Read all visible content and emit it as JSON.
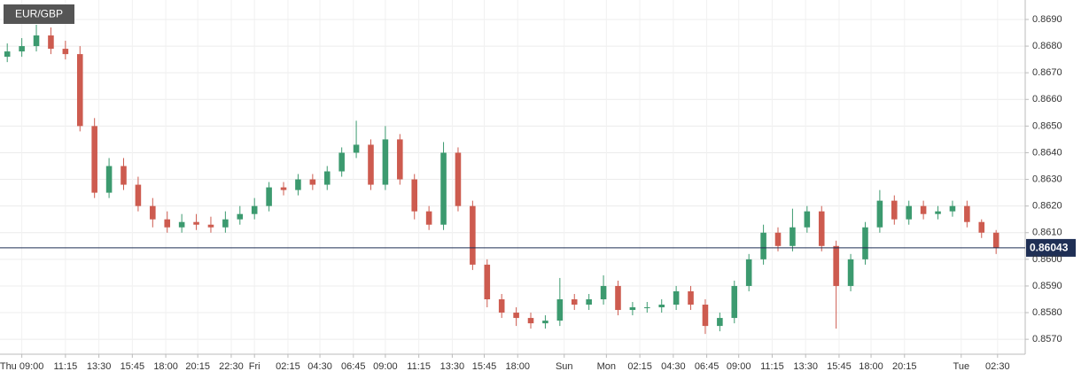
{
  "chart_data": {
    "type": "candlestick",
    "title": "EUR/GBP",
    "x": [
      0.5,
      1.5,
      2.5,
      3.5,
      4.5,
      5.5,
      6.5,
      7.5,
      8.5,
      9.5,
      10.5,
      11.5,
      12.5,
      13.5,
      14.5,
      15.5,
      16.5,
      17.5,
      18.5,
      19.5,
      20.5,
      21.5,
      22.5,
      23.5,
      24.5,
      25.5,
      26.5,
      27.5,
      28.5,
      29.5,
      30.5,
      31.5,
      32.5,
      33.5,
      34.5,
      35.5,
      36.5,
      37.5,
      38.5,
      39.5,
      40.5,
      41.5,
      42.5,
      43.5,
      44.5,
      45.5,
      46.5,
      47.5,
      48.5,
      49.5,
      50.5,
      51.5,
      52.5,
      53.5,
      54.5,
      55.5,
      56.5,
      57.5,
      58.5,
      59.5,
      60.5,
      61.5,
      62.5,
      63.5,
      64.5,
      65.5,
      66.5,
      67.5,
      68.5
    ],
    "open": [
      0.8676,
      0.8678,
      0.868,
      0.8684,
      0.8679,
      0.8677,
      0.865,
      0.8625,
      0.8635,
      0.8628,
      0.862,
      0.8615,
      0.8612,
      0.8614,
      0.8613,
      0.8612,
      0.8615,
      0.8617,
      0.862,
      0.8627,
      0.8626,
      0.863,
      0.8628,
      0.8633,
      0.864,
      0.8643,
      0.8628,
      0.8645,
      0.863,
      0.8618,
      0.8613,
      0.864,
      0.862,
      0.8598,
      0.8585,
      0.858,
      0.8578,
      0.8576,
      0.8577,
      0.8585,
      0.8583,
      0.8585,
      0.859,
      0.8581,
      0.8582,
      0.8582,
      0.8583,
      0.8588,
      0.8583,
      0.8575,
      0.8578,
      0.859,
      0.86,
      0.861,
      0.8605,
      0.8612,
      0.8618,
      0.8605,
      0.859,
      0.86,
      0.8612,
      0.8622,
      0.8615,
      0.862,
      0.8617,
      0.8618,
      0.862,
      0.8614,
      0.861
    ],
    "high": [
      0.8681,
      0.8683,
      0.8688,
      0.8687,
      0.8682,
      0.868,
      0.8653,
      0.8638,
      0.8638,
      0.8631,
      0.8623,
      0.8618,
      0.8617,
      0.8617,
      0.8616,
      0.8618,
      0.862,
      0.8623,
      0.8629,
      0.8629,
      0.8632,
      0.8632,
      0.8635,
      0.8642,
      0.8652,
      0.8645,
      0.865,
      0.8647,
      0.8632,
      0.862,
      0.8644,
      0.8642,
      0.8622,
      0.86,
      0.8587,
      0.8582,
      0.858,
      0.8579,
      0.8593,
      0.8587,
      0.8587,
      0.8594,
      0.8592,
      0.8584,
      0.8584,
      0.8585,
      0.859,
      0.859,
      0.8585,
      0.858,
      0.8592,
      0.8602,
      0.8613,
      0.8612,
      0.8619,
      0.862,
      0.862,
      0.8607,
      0.8602,
      0.8614,
      0.8626,
      0.8624,
      0.8622,
      0.8622,
      0.862,
      0.8622,
      0.8622,
      0.8615,
      0.8611
    ],
    "low": [
      0.8674,
      0.8676,
      0.8678,
      0.8677,
      0.8675,
      0.8648,
      0.8623,
      0.8623,
      0.8626,
      0.8618,
      0.8612,
      0.861,
      0.861,
      0.8611,
      0.861,
      0.861,
      0.8613,
      0.8615,
      0.8618,
      0.8624,
      0.8624,
      0.8626,
      0.8626,
      0.8631,
      0.8638,
      0.8626,
      0.8626,
      0.8628,
      0.8615,
      0.8611,
      0.8611,
      0.8618,
      0.8596,
      0.8582,
      0.8578,
      0.8575,
      0.8574,
      0.8574,
      0.8575,
      0.8581,
      0.8581,
      0.8583,
      0.8579,
      0.8579,
      0.858,
      0.858,
      0.8581,
      0.8581,
      0.8572,
      0.8573,
      0.8576,
      0.8588,
      0.8598,
      0.8603,
      0.8603,
      0.861,
      0.8603,
      0.8574,
      0.8588,
      0.8598,
      0.861,
      0.8613,
      0.8613,
      0.8615,
      0.8615,
      0.8616,
      0.8612,
      0.8608,
      0.8602
    ],
    "close": [
      0.8678,
      0.868,
      0.8684,
      0.8679,
      0.8677,
      0.865,
      0.8625,
      0.8635,
      0.8628,
      0.862,
      0.8615,
      0.8612,
      0.8614,
      0.8613,
      0.8612,
      0.8615,
      0.8617,
      0.862,
      0.8627,
      0.8626,
      0.863,
      0.8628,
      0.8633,
      0.864,
      0.8643,
      0.8628,
      0.8645,
      0.863,
      0.8618,
      0.8613,
      0.864,
      0.862,
      0.8598,
      0.8585,
      0.858,
      0.8578,
      0.8576,
      0.8577,
      0.8585,
      0.8583,
      0.8585,
      0.859,
      0.8581,
      0.8582,
      0.8582,
      0.8583,
      0.8588,
      0.8583,
      0.8575,
      0.8578,
      0.859,
      0.86,
      0.861,
      0.8605,
      0.8612,
      0.8618,
      0.8605,
      0.859,
      0.86,
      0.8612,
      0.8622,
      0.8615,
      0.862,
      0.8617,
      0.8618,
      0.862,
      0.8614,
      0.861,
      0.86043
    ],
    "up_color": "#3c9a6f",
    "down_color": "#cd5b4f",
    "last_price": 0.86043,
    "last_price_color": "#1f2f55",
    "xlim": [
      0,
      70.5
    ],
    "ylim": [
      0.85644,
      0.86973
    ],
    "xticks": [
      {
        "value": 1.5,
        "label": "Thu 09:00"
      },
      {
        "value": 4.5,
        "label": "11:15"
      },
      {
        "value": 6.8,
        "label": "13:30"
      },
      {
        "value": 9.1,
        "label": "15:45"
      },
      {
        "value": 11.4,
        "label": "18:00"
      },
      {
        "value": 13.6,
        "label": "20:15"
      },
      {
        "value": 15.9,
        "label": "22:30"
      },
      {
        "value": 17.5,
        "label": "Fri"
      },
      {
        "value": 19.8,
        "label": "02:15"
      },
      {
        "value": 22,
        "label": "04:30"
      },
      {
        "value": 24.3,
        "label": "06:45"
      },
      {
        "value": 26.5,
        "label": "09:00"
      },
      {
        "value": 28.8,
        "label": "11:15"
      },
      {
        "value": 31.1,
        "label": "13:30"
      },
      {
        "value": 33.3,
        "label": "15:45"
      },
      {
        "value": 35.6,
        "label": "18:00"
      },
      {
        "value": 38.8,
        "label": "Sun"
      },
      {
        "value": 41.7,
        "label": "Mon"
      },
      {
        "value": 44,
        "label": "02:15"
      },
      {
        "value": 46.3,
        "label": "04:30"
      },
      {
        "value": 48.6,
        "label": "06:45"
      },
      {
        "value": 50.8,
        "label": "09:00"
      },
      {
        "value": 53.1,
        "label": "11:15"
      },
      {
        "value": 55.4,
        "label": "13:30"
      },
      {
        "value": 57.7,
        "label": "15:45"
      },
      {
        "value": 59.9,
        "label": "18:00"
      },
      {
        "value": 62.2,
        "label": "20:15"
      },
      {
        "value": 66.1,
        "label": "Tue"
      },
      {
        "value": 68.6,
        "label": "02:30"
      }
    ],
    "yticks": [
      {
        "value": 0.857,
        "label": "0.8570"
      },
      {
        "value": 0.858,
        "label": "0.8580"
      },
      {
        "value": 0.859,
        "label": "0.8590"
      },
      {
        "value": 0.86,
        "label": "0.8600"
      },
      {
        "value": 0.861,
        "label": "0.8610"
      },
      {
        "value": 0.862,
        "label": "0.8620"
      },
      {
        "value": 0.863,
        "label": "0.8630"
      },
      {
        "value": 0.864,
        "label": "0.8640"
      },
      {
        "value": 0.865,
        "label": "0.8650"
      },
      {
        "value": 0.866,
        "label": "0.8660"
      },
      {
        "value": 0.867,
        "label": "0.8670"
      },
      {
        "value": 0.868,
        "label": "0.8680"
      },
      {
        "value": 0.869,
        "label": "0.8690"
      }
    ],
    "grid": true
  }
}
